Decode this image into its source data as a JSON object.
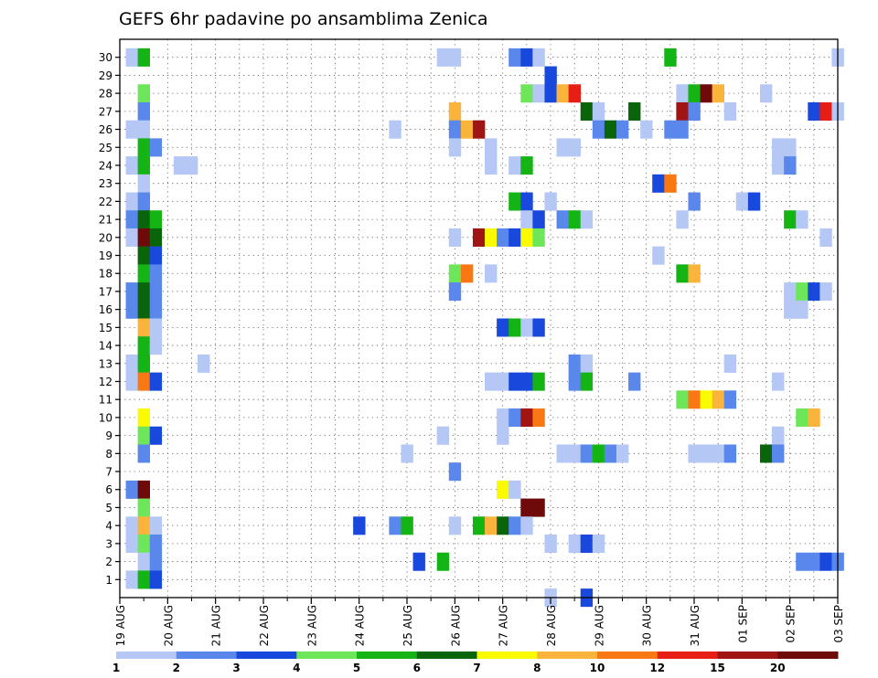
{
  "chart_data": {
    "type": "heatmap",
    "title": "GEFS 6hr padavine po ansamblima Zenica",
    "xlabel": "",
    "ylabel": "",
    "x_tick_labels": [
      "19 AUG",
      "20 AUG",
      "21 AUG",
      "22 AUG",
      "23 AUG",
      "24 AUG",
      "25 AUG",
      "26 AUG",
      "27 AUG",
      "28 AUG",
      "29 AUG",
      "30 AUG",
      "31 AUG",
      "01 SEP",
      "02 SEP",
      "03 SEP"
    ],
    "x_range_steps": [
      0,
      60
    ],
    "y_tick_labels": [
      "1",
      "2",
      "3",
      "4",
      "5",
      "6",
      "7",
      "8",
      "9",
      "10",
      "11",
      "12",
      "13",
      "14",
      "15",
      "16",
      "17",
      "18",
      "19",
      "20",
      "21",
      "22",
      "23",
      "24",
      "25",
      "26",
      "27",
      "28",
      "29",
      "30"
    ],
    "y_range": [
      0,
      31
    ],
    "grid": true,
    "colorbar": {
      "levels": [
        "1",
        "2",
        "3",
        "4",
        "5",
        "6",
        "7",
        "8",
        "10",
        "12",
        "15",
        "20"
      ],
      "colors": [
        "#b4c7f5",
        "#5a87ec",
        "#1948dc",
        "#6ee65a",
        "#14b414",
        "#0a640a",
        "#fafa00",
        "#fab43c",
        "#fa7814",
        "#e61e14",
        "#a01414",
        "#6e0a0a"
      ]
    },
    "cells_desc": "Each cell is [member, time_step_6h_from_19AUG_00Z, color_class_index 0-11]",
    "cells": [
      [
        30,
        1,
        0
      ],
      [
        30,
        2,
        4
      ],
      [
        30,
        27,
        0
      ],
      [
        30,
        28,
        0
      ],
      [
        30,
        33,
        1
      ],
      [
        30,
        34,
        2
      ],
      [
        30,
        35,
        0
      ],
      [
        30,
        46,
        4
      ],
      [
        30,
        60,
        0
      ],
      [
        29,
        36,
        2
      ],
      [
        28,
        2,
        3
      ],
      [
        28,
        34,
        3
      ],
      [
        28,
        35,
        0
      ],
      [
        28,
        36,
        2
      ],
      [
        28,
        37,
        7
      ],
      [
        28,
        38,
        9
      ],
      [
        28,
        47,
        0
      ],
      [
        28,
        48,
        4
      ],
      [
        28,
        49,
        11
      ],
      [
        28,
        50,
        7
      ],
      [
        28,
        54,
        0
      ],
      [
        27,
        2,
        1
      ],
      [
        27,
        28,
        7
      ],
      [
        27,
        39,
        5
      ],
      [
        27,
        40,
        0
      ],
      [
        27,
        43,
        5
      ],
      [
        27,
        47,
        10
      ],
      [
        27,
        48,
        1
      ],
      [
        27,
        51,
        0
      ],
      [
        27,
        58,
        2
      ],
      [
        27,
        59,
        9
      ],
      [
        27,
        60,
        0
      ],
      [
        26,
        1,
        0
      ],
      [
        26,
        2,
        0
      ],
      [
        26,
        23,
        0
      ],
      [
        26,
        28,
        1
      ],
      [
        26,
        29,
        7
      ],
      [
        26,
        30,
        10
      ],
      [
        26,
        40,
        1
      ],
      [
        26,
        41,
        5
      ],
      [
        26,
        42,
        1
      ],
      [
        26,
        44,
        0
      ],
      [
        26,
        46,
        1
      ],
      [
        26,
        47,
        1
      ],
      [
        25,
        2,
        4
      ],
      [
        25,
        3,
        1
      ],
      [
        25,
        28,
        0
      ],
      [
        25,
        31,
        0
      ],
      [
        25,
        37,
        0
      ],
      [
        25,
        38,
        0
      ],
      [
        25,
        55,
        0
      ],
      [
        25,
        56,
        0
      ],
      [
        24,
        1,
        0
      ],
      [
        24,
        2,
        4
      ],
      [
        24,
        5,
        0
      ],
      [
        24,
        6,
        0
      ],
      [
        24,
        31,
        0
      ],
      [
        24,
        33,
        0
      ],
      [
        24,
        34,
        4
      ],
      [
        24,
        55,
        0
      ],
      [
        24,
        56,
        1
      ],
      [
        23,
        2,
        0
      ],
      [
        23,
        45,
        2
      ],
      [
        23,
        46,
        8
      ],
      [
        22,
        1,
        0
      ],
      [
        22,
        2,
        1
      ],
      [
        22,
        33,
        4
      ],
      [
        22,
        34,
        2
      ],
      [
        22,
        36,
        0
      ],
      [
        22,
        48,
        1
      ],
      [
        22,
        52,
        0
      ],
      [
        22,
        53,
        2
      ],
      [
        21,
        1,
        1
      ],
      [
        21,
        2,
        5
      ],
      [
        21,
        3,
        4
      ],
      [
        21,
        34,
        0
      ],
      [
        21,
        35,
        2
      ],
      [
        21,
        37,
        1
      ],
      [
        21,
        38,
        4
      ],
      [
        21,
        39,
        0
      ],
      [
        21,
        47,
        0
      ],
      [
        21,
        56,
        4
      ],
      [
        21,
        57,
        0
      ],
      [
        20,
        1,
        0
      ],
      [
        20,
        2,
        11
      ],
      [
        20,
        3,
        5
      ],
      [
        20,
        28,
        0
      ],
      [
        20,
        30,
        10
      ],
      [
        20,
        31,
        6
      ],
      [
        20,
        32,
        1
      ],
      [
        20,
        33,
        2
      ],
      [
        20,
        34,
        6
      ],
      [
        20,
        35,
        3
      ],
      [
        20,
        59,
        0
      ],
      [
        19,
        2,
        5
      ],
      [
        19,
        3,
        2
      ],
      [
        19,
        45,
        0
      ],
      [
        18,
        2,
        4
      ],
      [
        18,
        3,
        1
      ],
      [
        18,
        28,
        3
      ],
      [
        18,
        29,
        8
      ],
      [
        18,
        31,
        0
      ],
      [
        18,
        47,
        4
      ],
      [
        18,
        48,
        7
      ],
      [
        17,
        1,
        1
      ],
      [
        17,
        2,
        5
      ],
      [
        17,
        3,
        1
      ],
      [
        17,
        28,
        1
      ],
      [
        17,
        56,
        0
      ],
      [
        17,
        57,
        3
      ],
      [
        17,
        58,
        2
      ],
      [
        17,
        59,
        0
      ],
      [
        16,
        1,
        1
      ],
      [
        16,
        2,
        5
      ],
      [
        16,
        3,
        1
      ],
      [
        16,
        56,
        0
      ],
      [
        16,
        57,
        0
      ],
      [
        15,
        2,
        7
      ],
      [
        15,
        3,
        0
      ],
      [
        15,
        32,
        2
      ],
      [
        15,
        33,
        4
      ],
      [
        15,
        34,
        0
      ],
      [
        15,
        35,
        2
      ],
      [
        14,
        2,
        4
      ],
      [
        14,
        3,
        0
      ],
      [
        13,
        1,
        0
      ],
      [
        13,
        2,
        4
      ],
      [
        13,
        7,
        0
      ],
      [
        13,
        38,
        1
      ],
      [
        13,
        39,
        0
      ],
      [
        13,
        51,
        0
      ],
      [
        12,
        1,
        0
      ],
      [
        12,
        2,
        8
      ],
      [
        12,
        3,
        2
      ],
      [
        12,
        31,
        0
      ],
      [
        12,
        32,
        0
      ],
      [
        12,
        33,
        2
      ],
      [
        12,
        34,
        2
      ],
      [
        12,
        35,
        4
      ],
      [
        12,
        38,
        1
      ],
      [
        12,
        39,
        4
      ],
      [
        12,
        43,
        1
      ],
      [
        12,
        55,
        0
      ],
      [
        11,
        47,
        3
      ],
      [
        11,
        48,
        8
      ],
      [
        11,
        49,
        6
      ],
      [
        11,
        50,
        7
      ],
      [
        11,
        51,
        1
      ],
      [
        10,
        2,
        6
      ],
      [
        10,
        32,
        0
      ],
      [
        10,
        33,
        1
      ],
      [
        10,
        34,
        10
      ],
      [
        10,
        35,
        8
      ],
      [
        10,
        57,
        3
      ],
      [
        10,
        58,
        7
      ],
      [
        9,
        2,
        3
      ],
      [
        9,
        3,
        2
      ],
      [
        9,
        27,
        0
      ],
      [
        9,
        32,
        0
      ],
      [
        9,
        55,
        0
      ],
      [
        8,
        2,
        1
      ],
      [
        8,
        24,
        0
      ],
      [
        8,
        37,
        0
      ],
      [
        8,
        38,
        0
      ],
      [
        8,
        39,
        1
      ],
      [
        8,
        40,
        4
      ],
      [
        8,
        41,
        1
      ],
      [
        8,
        42,
        0
      ],
      [
        8,
        48,
        0
      ],
      [
        8,
        49,
        0
      ],
      [
        8,
        50,
        0
      ],
      [
        8,
        51,
        1
      ],
      [
        8,
        54,
        5
      ],
      [
        8,
        55,
        1
      ],
      [
        7,
        28,
        1
      ],
      [
        6,
        1,
        1
      ],
      [
        6,
        2,
        11
      ],
      [
        6,
        32,
        6
      ],
      [
        6,
        33,
        0
      ],
      [
        5,
        2,
        3
      ],
      [
        5,
        34,
        11
      ],
      [
        5,
        35,
        11
      ],
      [
        4,
        1,
        0
      ],
      [
        4,
        2,
        7
      ],
      [
        4,
        3,
        0
      ],
      [
        4,
        20,
        2
      ],
      [
        4,
        23,
        1
      ],
      [
        4,
        24,
        4
      ],
      [
        4,
        28,
        0
      ],
      [
        4,
        30,
        4
      ],
      [
        4,
        31,
        7
      ],
      [
        4,
        32,
        5
      ],
      [
        4,
        33,
        1
      ],
      [
        4,
        34,
        0
      ],
      [
        3,
        1,
        0
      ],
      [
        3,
        2,
        3
      ],
      [
        3,
        3,
        1
      ],
      [
        3,
        36,
        0
      ],
      [
        3,
        38,
        0
      ],
      [
        3,
        39,
        2
      ],
      [
        3,
        40,
        0
      ],
      [
        2,
        2,
        0
      ],
      [
        2,
        3,
        1
      ],
      [
        2,
        25,
        2
      ],
      [
        2,
        27,
        4
      ],
      [
        2,
        57,
        1
      ],
      [
        2,
        58,
        1
      ],
      [
        2,
        59,
        2
      ],
      [
        2,
        60,
        1
      ],
      [
        1,
        1,
        0
      ],
      [
        1,
        2,
        4
      ],
      [
        1,
        3,
        2
      ],
      [
        0,
        36,
        0
      ],
      [
        0,
        39,
        2
      ]
    ]
  }
}
